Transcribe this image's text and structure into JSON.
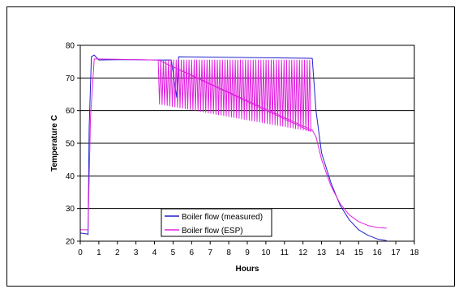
{
  "chart_data": {
    "type": "line",
    "title": "",
    "xlabel": "Hours",
    "ylabel": "Temperature C",
    "xlim": [
      0,
      18
    ],
    "ylim": [
      20,
      80
    ],
    "x_ticks": [
      "0",
      "1",
      "2",
      "3",
      "4",
      "5",
      "6",
      "7",
      "8",
      "9",
      "10",
      "11",
      "12",
      "13",
      "14",
      "15",
      "16",
      "17",
      "18"
    ],
    "y_ticks": [
      "20",
      "30",
      "40",
      "50",
      "60",
      "70",
      "80"
    ],
    "grid": "horizontal",
    "legend_position": "bottom-left",
    "series": [
      {
        "name": "Boiler flow (measured)",
        "color": "#1f1fcc",
        "oscillation": {
          "start": 5.0,
          "end": 12.5,
          "cycles": 55,
          "upper": [
            76,
            76.5
          ],
          "lower": [
            62,
            54
          ]
        },
        "points": [
          [
            0,
            22.5
          ],
          [
            0.4,
            22.2
          ],
          [
            0.42,
            22
          ],
          [
            0.48,
            55
          ],
          [
            0.6,
            76.5
          ],
          [
            0.75,
            77
          ],
          [
            1.0,
            75.5
          ],
          [
            2.0,
            75.6
          ],
          [
            3.0,
            75.6
          ],
          [
            4.0,
            75.5
          ],
          [
            4.9,
            75.5
          ],
          [
            5.2,
            64
          ],
          [
            5.3,
            76.5
          ],
          [
            12.5,
            76
          ],
          [
            12.7,
            60
          ],
          [
            13.0,
            47
          ],
          [
            13.5,
            38
          ],
          [
            14.0,
            31
          ],
          [
            14.5,
            26.5
          ],
          [
            15.0,
            23.5
          ],
          [
            15.5,
            21.8
          ],
          [
            16.0,
            20.7
          ],
          [
            16.5,
            20.2
          ]
        ]
      },
      {
        "name": "Boiler flow (ESP)",
        "color": "#e020e0",
        "oscillation": {
          "start": 4.2,
          "end": 12.5,
          "cycles": 60,
          "upper": [
            75.5,
            75.5
          ],
          "lower": [
            62,
            53.5
          ]
        },
        "points": [
          [
            0,
            23.5
          ],
          [
            0.42,
            23.5
          ],
          [
            0.55,
            58
          ],
          [
            0.75,
            75.8
          ],
          [
            1.0,
            75.8
          ],
          [
            2.0,
            75.7
          ],
          [
            3.0,
            75.6
          ],
          [
            4.2,
            75.5
          ],
          [
            12.5,
            54
          ],
          [
            12.7,
            52
          ],
          [
            13.0,
            45
          ],
          [
            13.5,
            37
          ],
          [
            14.0,
            31.5
          ],
          [
            14.5,
            28
          ],
          [
            15.0,
            26
          ],
          [
            15.5,
            24.8
          ],
          [
            16.0,
            24.2
          ],
          [
            16.5,
            24
          ]
        ]
      }
    ]
  }
}
